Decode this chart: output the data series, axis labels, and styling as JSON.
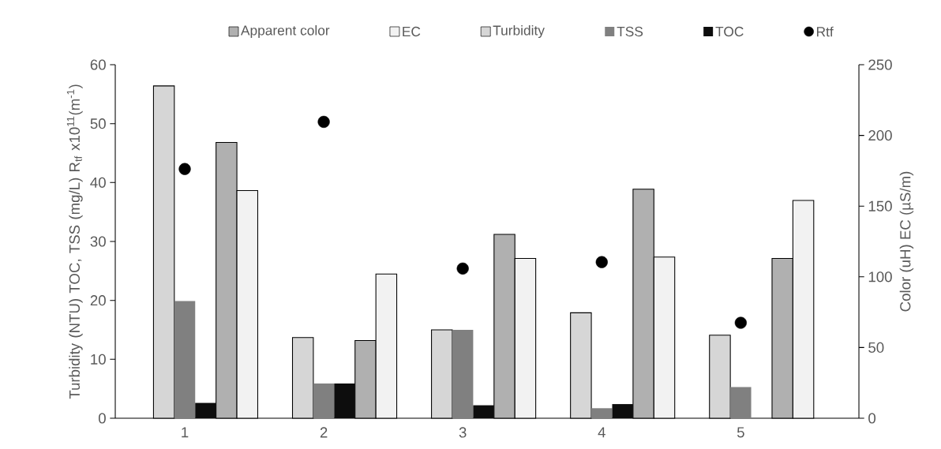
{
  "chart_data": {
    "type": "bar",
    "categories": [
      "1",
      "2",
      "3",
      "4",
      "5"
    ],
    "ylabel": "Turbidity (NTU) TOC, TSS (mg/L) R$_{tf}$ x10$^{11}$(m$^{-1}$)",
    "y2label": "Color (uH)          EC (µS/m)",
    "ylim": [
      0,
      60
    ],
    "yticks": [
      0,
      10,
      20,
      30,
      40,
      50,
      60
    ],
    "y2lim": [
      0,
      250
    ],
    "y2ticks": [
      0,
      50,
      100,
      150,
      200,
      250
    ],
    "legend": "top",
    "series": [
      {
        "name": "Apparent color",
        "color": "#b0b0b0",
        "axis": "y2",
        "values": [
          195,
          55,
          130,
          162,
          113
        ]
      },
      {
        "name": "EC",
        "color": "#f2f2f2",
        "axis": "y2",
        "values": [
          161,
          102,
          113,
          114,
          154
        ]
      },
      {
        "name": "Turbidity",
        "color": "#d6d6d6",
        "values": [
          56.4,
          13.7,
          15.0,
          17.9,
          14.1
        ]
      },
      {
        "name": "TSS",
        "color": "#808080",
        "values": [
          19.9,
          5.9,
          15.0,
          1.7,
          5.3
        ]
      },
      {
        "name": "TOC",
        "color": "#0d0d0d",
        "values": [
          2.6,
          5.9,
          2.2,
          2.4,
          null
        ]
      },
      {
        "name": "Rtf",
        "color": "#000000",
        "type": "scatter",
        "marker": "circle",
        "values": [
          42.3,
          50.3,
          25.4,
          26.5,
          16.2
        ]
      }
    ]
  }
}
